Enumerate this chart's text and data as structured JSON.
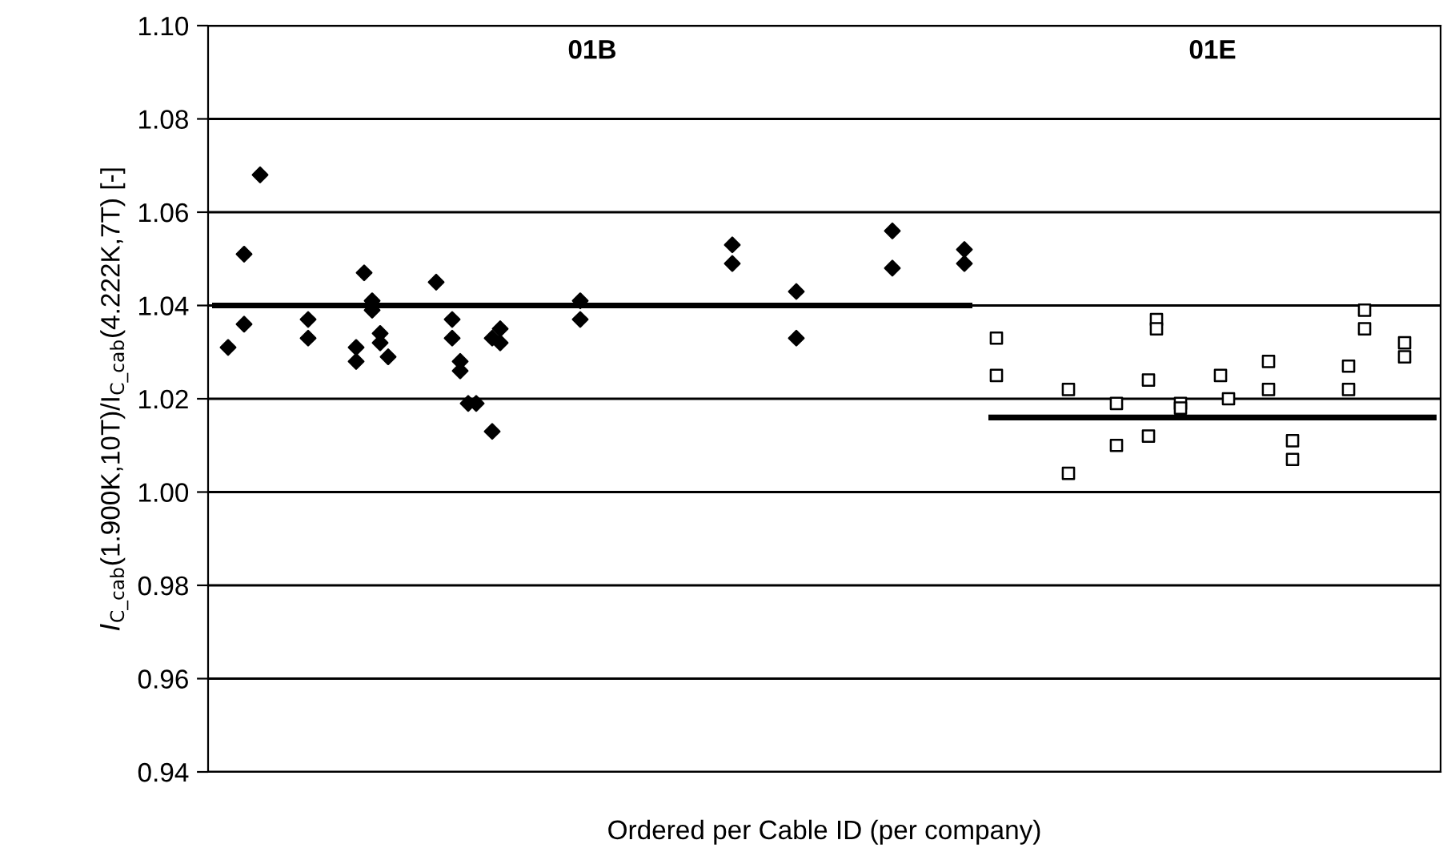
{
  "chart_data": {
    "type": "scatter",
    "xlabel": "Ordered per Cable ID (per company)",
    "ylabel": "I$_{C_cab}$(1.900K,10T)/I$_{C_cab}$(4.222K,7T) [-]",
    "annotations": [
      "01B",
      "01E"
    ],
    "categories": [
      null,
      null,
      null,
      null,
      null,
      null,
      null,
      null,
      null,
      null,
      null,
      null,
      null,
      null,
      null,
      null,
      null,
      null,
      null,
      null,
      null,
      null,
      null,
      null,
      null,
      null,
      null,
      null,
      null,
      null,
      null,
      null,
      null,
      null,
      null,
      null,
      null,
      null,
      null,
      null,
      null,
      null,
      null,
      null,
      null,
      null,
      null,
      null,
      null,
      null,
      null,
      null,
      null,
      null,
      null,
      null,
      null,
      null,
      null,
      null,
      null,
      null,
      null,
      null,
      null,
      null,
      null,
      null,
      null,
      null,
      null,
      null,
      null,
      null,
      null,
      null,
      null,
      null,
      null,
      null,
      null,
      null,
      null,
      null,
      null,
      null,
      null,
      null,
      null,
      null,
      null,
      null,
      null,
      null,
      null,
      null,
      null,
      null,
      null,
      null,
      null,
      null,
      null,
      null,
      null,
      null,
      null,
      null,
      null,
      null,
      null,
      null,
      null,
      null,
      null,
      null,
      null,
      null,
      null,
      null,
      null,
      null,
      null,
      null,
      null,
      null,
      null,
      null,
      null,
      null,
      null,
      null,
      null,
      null,
      null,
      null,
      null,
      null,
      null,
      null,
      null,
      null,
      null,
      null,
      null,
      null,
      null,
      null,
      null,
      null,
      null,
      null,
      null,
      null
    ],
    "ylim": [
      0.94,
      1.1
    ],
    "yticks": [
      {
        "value": 0.94,
        "label": "0.94"
      },
      {
        "value": 0.96,
        "label": "0.96"
      },
      {
        "value": 0.98,
        "label": "0.98"
      },
      {
        "value": 1.0,
        "label": "1.00"
      },
      {
        "value": 1.02,
        "label": "1.02"
      },
      {
        "value": 1.04,
        "label": "1.04"
      },
      {
        "value": 1.06,
        "label": "1.06"
      },
      {
        "value": 1.08,
        "label": "1.08"
      },
      {
        "value": 1.1,
        "label": "1.10"
      }
    ],
    "grid": "y",
    "series": [
      {
        "marker": "diamond",
        "color": "#000000",
        "values": [
          null,
          null,
          1.031,
          null,
          1.051,
          null,
          1.068,
          null,
          null,
          null,
          null,
          null,
          1.037,
          null,
          null,
          null,
          null,
          null,
          1.031,
          1.047,
          1.041,
          1.034,
          1.029,
          null,
          null,
          null,
          null,
          null,
          1.045,
          null,
          1.037,
          1.028,
          1.019,
          1.019,
          null,
          1.033,
          1.035,
          null,
          null,
          null,
          null,
          null,
          null,
          null,
          null,
          null,
          1.041,
          null,
          null,
          null,
          null,
          null,
          null,
          null,
          null,
          null,
          null,
          null,
          null,
          null,
          null,
          null,
          null,
          null,
          null,
          1.053,
          null,
          null,
          null,
          null,
          null,
          null,
          null,
          1.043,
          null,
          null,
          null,
          null,
          null,
          null,
          null,
          null,
          null,
          null,
          null,
          1.056,
          null,
          null,
          null,
          null,
          null,
          null,
          null,
          null,
          1.052,
          null,
          null,
          null,
          null,
          null,
          null,
          null,
          null,
          null,
          null,
          null,
          null,
          null,
          null,
          null,
          null,
          null,
          null,
          null,
          null,
          null,
          null,
          null,
          null,
          null,
          null,
          null,
          null,
          null,
          null,
          null,
          null,
          null,
          null,
          null,
          null,
          null,
          null,
          null,
          null,
          null,
          null,
          null,
          null,
          null,
          null,
          null,
          null,
          null,
          null,
          null,
          null,
          null,
          null,
          null,
          null,
          null,
          null,
          null
        ]
      },
      {
        "marker": "diamond",
        "color": "#000000",
        "values": [
          null,
          null,
          null,
          null,
          1.036,
          null,
          null,
          null,
          null,
          null,
          null,
          null,
          1.033,
          null,
          null,
          null,
          null,
          null,
          1.028,
          null,
          1.039,
          1.032,
          null,
          null,
          null,
          null,
          null,
          null,
          null,
          null,
          1.033,
          1.026,
          null,
          null,
          null,
          1.013,
          1.032,
          null,
          null,
          null,
          null,
          null,
          null,
          null,
          null,
          null,
          1.037,
          null,
          null,
          null,
          null,
          null,
          null,
          null,
          null,
          null,
          null,
          null,
          null,
          null,
          null,
          null,
          null,
          null,
          null,
          1.049,
          null,
          null,
          null,
          null,
          null,
          null,
          null,
          1.033,
          null,
          null,
          null,
          null,
          null,
          null,
          null,
          null,
          null,
          null,
          null,
          1.048,
          null,
          null,
          null,
          null,
          null,
          null,
          null,
          null,
          1.049,
          null,
          null,
          null,
          null,
          null,
          null,
          null,
          null,
          null,
          null,
          null,
          null,
          null,
          null,
          null,
          null,
          null,
          null,
          null,
          null,
          null,
          null,
          null,
          null,
          null,
          null,
          null,
          null,
          null,
          null,
          null,
          null,
          null,
          null,
          null,
          null,
          null,
          null,
          null,
          null,
          null,
          null,
          null,
          null,
          null,
          null,
          null,
          null,
          null,
          null,
          null,
          null,
          null,
          null,
          null,
          null,
          null,
          null,
          null
        ]
      },
      {
        "marker": "square",
        "color": "#000000",
        "values": [
          null,
          null,
          null,
          null,
          null,
          null,
          null,
          null,
          null,
          null,
          null,
          null,
          null,
          null,
          null,
          null,
          null,
          null,
          null,
          null,
          null,
          null,
          null,
          null,
          null,
          null,
          null,
          null,
          null,
          null,
          null,
          null,
          null,
          null,
          null,
          null,
          null,
          null,
          null,
          null,
          null,
          null,
          null,
          null,
          null,
          null,
          null,
          null,
          null,
          null,
          null,
          null,
          null,
          null,
          null,
          null,
          null,
          null,
          null,
          null,
          null,
          null,
          null,
          null,
          null,
          null,
          null,
          null,
          null,
          null,
          null,
          null,
          null,
          null,
          null,
          null,
          null,
          null,
          null,
          null,
          null,
          null,
          null,
          null,
          null,
          null,
          null,
          null,
          null,
          null,
          null,
          null,
          null,
          null,
          null,
          null,
          null,
          null,
          1.033,
          null,
          null,
          null,
          null,
          null,
          null,
          null,
          null,
          1.022,
          null,
          null,
          null,
          null,
          null,
          1.019,
          null,
          null,
          null,
          1.024,
          1.037,
          null,
          null,
          1.019,
          null,
          null,
          null,
          null,
          1.025,
          1.02,
          null,
          null,
          null,
          null,
          1.028,
          null,
          null,
          1.011,
          null,
          null,
          null,
          null,
          null,
          null,
          1.027,
          null,
          1.039,
          null,
          null,
          null,
          null,
          1.032,
          null,
          null,
          null,
          null
        ]
      },
      {
        "marker": "square",
        "color": "#000000",
        "values": [
          null,
          null,
          null,
          null,
          null,
          null,
          null,
          null,
          null,
          null,
          null,
          null,
          null,
          null,
          null,
          null,
          null,
          null,
          null,
          null,
          null,
          null,
          null,
          null,
          null,
          null,
          null,
          null,
          null,
          null,
          null,
          null,
          null,
          null,
          null,
          null,
          null,
          null,
          null,
          null,
          null,
          null,
          null,
          null,
          null,
          null,
          null,
          null,
          null,
          null,
          null,
          null,
          null,
          null,
          null,
          null,
          null,
          null,
          null,
          null,
          null,
          null,
          null,
          null,
          null,
          null,
          null,
          null,
          null,
          null,
          null,
          null,
          null,
          null,
          null,
          null,
          null,
          null,
          null,
          null,
          null,
          null,
          null,
          null,
          null,
          null,
          null,
          null,
          null,
          null,
          null,
          null,
          null,
          null,
          null,
          null,
          null,
          null,
          1.025,
          null,
          null,
          null,
          null,
          null,
          null,
          null,
          null,
          1.004,
          null,
          null,
          null,
          null,
          null,
          1.01,
          null,
          null,
          null,
          1.012,
          1.035,
          null,
          null,
          1.018,
          null,
          null,
          null,
          null,
          null,
          null,
          null,
          null,
          null,
          null,
          1.022,
          null,
          null,
          1.007,
          null,
          null,
          null,
          null,
          null,
          null,
          1.022,
          null,
          1.035,
          null,
          null,
          null,
          null,
          1.029,
          null,
          null,
          null,
          null
        ]
      },
      {
        "type": "line",
        "marker": "none",
        "line_style": "solid",
        "color": "#000000",
        "values": [
          1.04,
          1.04,
          1.04,
          1.04,
          1.04,
          1.04,
          1.04,
          1.04,
          1.04,
          1.04,
          1.04,
          1.04,
          1.04,
          1.04,
          1.04,
          1.04,
          1.04,
          1.04,
          1.04,
          1.04,
          1.04,
          1.04,
          1.04,
          1.04,
          1.04,
          1.04,
          1.04,
          1.04,
          1.04,
          1.04,
          1.04,
          1.04,
          1.04,
          1.04,
          1.04,
          1.04,
          1.04,
          1.04,
          1.04,
          1.04,
          1.04,
          1.04,
          1.04,
          1.04,
          1.04,
          1.04,
          1.04,
          1.04,
          1.04,
          1.04,
          1.04,
          1.04,
          1.04,
          1.04,
          1.04,
          1.04,
          1.04,
          1.04,
          1.04,
          1.04,
          1.04,
          1.04,
          1.04,
          1.04,
          1.04,
          1.04,
          1.04,
          1.04,
          1.04,
          1.04,
          1.04,
          1.04,
          1.04,
          1.04,
          1.04,
          1.04,
          1.04,
          1.04,
          1.04,
          1.04,
          1.04,
          1.04,
          1.04,
          1.04,
          1.04,
          1.04,
          1.04,
          1.04,
          1.04,
          1.04,
          1.04,
          1.04,
          1.04,
          1.04,
          1.04,
          1.04,
          null,
          null,
          null,
          null,
          null,
          null,
          null,
          null,
          null,
          null,
          null,
          null,
          null,
          null,
          null,
          null,
          null,
          null,
          null,
          null,
          null,
          null,
          null,
          null,
          null,
          null,
          null,
          null,
          null,
          null,
          null,
          null,
          null,
          null,
          null,
          null,
          null,
          null,
          null,
          null,
          null,
          null,
          null,
          null,
          null,
          null,
          null,
          null,
          null,
          null,
          null,
          null,
          null,
          null,
          null,
          null,
          null,
          null
        ]
      },
      {
        "type": "line",
        "marker": "none",
        "line_style": "solid",
        "color": "#000000",
        "values": [
          null,
          null,
          null,
          null,
          null,
          null,
          null,
          null,
          null,
          null,
          null,
          null,
          null,
          null,
          null,
          null,
          null,
          null,
          null,
          null,
          null,
          null,
          null,
          null,
          null,
          null,
          null,
          null,
          null,
          null,
          null,
          null,
          null,
          null,
          null,
          null,
          null,
          null,
          null,
          null,
          null,
          null,
          null,
          null,
          null,
          null,
          null,
          null,
          null,
          null,
          null,
          null,
          null,
          null,
          null,
          null,
          null,
          null,
          null,
          null,
          null,
          null,
          null,
          null,
          null,
          null,
          null,
          null,
          null,
          null,
          null,
          null,
          null,
          null,
          null,
          null,
          null,
          null,
          null,
          null,
          null,
          null,
          null,
          null,
          null,
          null,
          null,
          null,
          null,
          null,
          null,
          null,
          null,
          null,
          null,
          null,
          null,
          1.016,
          1.016,
          1.016,
          1.016,
          1.016,
          1.016,
          1.016,
          1.016,
          1.016,
          1.016,
          1.016,
          1.016,
          1.016,
          1.016,
          1.016,
          1.016,
          1.016,
          1.016,
          1.016,
          1.016,
          1.016,
          1.016,
          1.016,
          1.016,
          1.016,
          1.016,
          1.016,
          1.016,
          1.016,
          1.016,
          1.016,
          1.016,
          1.016,
          1.016,
          1.016,
          1.016,
          1.016,
          1.016,
          1.016,
          1.016,
          1.016,
          1.016,
          1.016,
          1.016,
          1.016,
          1.016,
          1.016,
          1.016,
          1.016,
          1.016,
          1.016,
          1.016,
          1.016,
          1.016,
          1.016,
          1.016,
          1.016
        ]
      }
    ]
  }
}
